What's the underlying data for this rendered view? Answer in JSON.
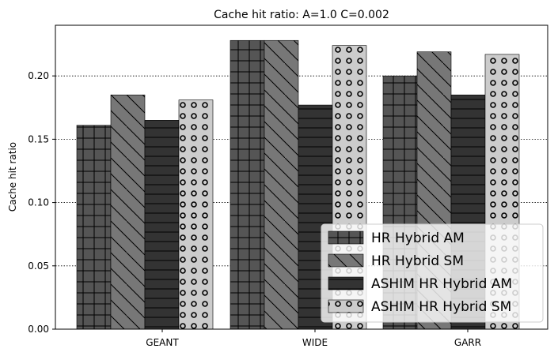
{
  "chart_data": {
    "type": "bar",
    "title": "Cache hit ratio: A=1.0 C=0.002",
    "xlabel": "",
    "ylabel": "Cache hit ratio",
    "categories": [
      "GEANT",
      "WIDE",
      "GARR"
    ],
    "ylim": [
      0,
      0.24
    ],
    "yticks": [
      0.0,
      0.05,
      0.1,
      0.15,
      0.2
    ],
    "ytick_labels": [
      "0.00",
      "0.05",
      "0.10",
      "0.15",
      "0.20"
    ],
    "grid": "horizontal dotted",
    "legend_position": "lower-right",
    "series": [
      {
        "name": "HR Hybrid AM",
        "values": [
          0.161,
          0.228,
          0.2
        ],
        "color": "#555555",
        "pattern": "grid"
      },
      {
        "name": "HR Hybrid SM",
        "values": [
          0.185,
          0.228,
          0.219
        ],
        "color": "#777777",
        "pattern": "diagonal"
      },
      {
        "name": "ASHIM HR Hybrid AM",
        "values": [
          0.165,
          0.177,
          0.185
        ],
        "color": "#333333",
        "pattern": "horizontal"
      },
      {
        "name": "ASHIM HR Hybrid SM",
        "values": [
          0.181,
          0.224,
          0.217
        ],
        "color": "#cccccc",
        "pattern": "circles"
      }
    ]
  }
}
